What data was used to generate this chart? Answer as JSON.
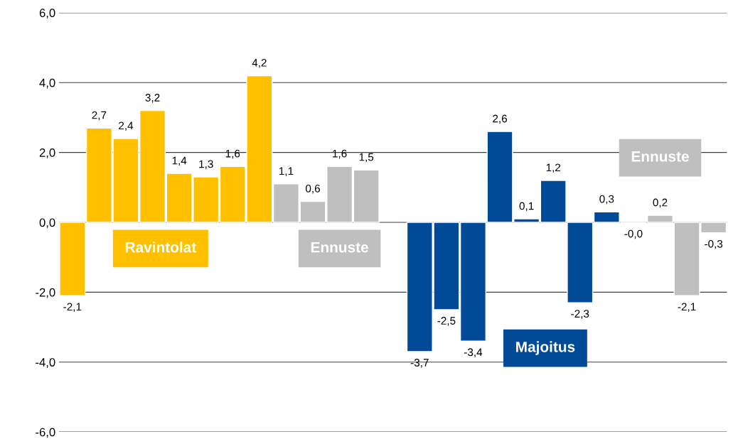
{
  "chart_data": {
    "type": "bar",
    "categories": [
      null,
      null,
      null,
      null,
      null,
      null,
      null,
      null,
      null,
      null,
      null,
      null,
      null,
      null,
      null,
      null,
      null,
      null,
      null,
      null,
      null,
      null,
      null,
      null,
      null
    ],
    "series": [
      {
        "color": "#ffc000",
        "values": [
          -2.1,
          2.7,
          2.4,
          3.2,
          1.4,
          1.3,
          1.6,
          4.2,
          null,
          null,
          null,
          null,
          null,
          null,
          null,
          null,
          null,
          null,
          null,
          null,
          null,
          null,
          null,
          null,
          null
        ],
        "value_labels": [
          "-2,1",
          "2,7",
          "2,4",
          "3,2",
          "1,4",
          "1,3",
          "1,6",
          "4,2",
          null,
          null,
          null,
          null,
          null,
          null,
          null,
          null,
          null,
          null,
          null,
          null,
          null,
          null,
          null,
          null,
          null
        ]
      },
      {
        "color": "#bfbfbf",
        "values": [
          null,
          null,
          null,
          null,
          null,
          null,
          null,
          null,
          1.1,
          0.6,
          1.6,
          1.5,
          null,
          null,
          null,
          null,
          null,
          null,
          null,
          null,
          null,
          null,
          null,
          null,
          null
        ],
        "value_labels": [
          null,
          null,
          null,
          null,
          null,
          null,
          null,
          null,
          "1,1",
          "0,6",
          "1,6",
          "1,5",
          null,
          null,
          null,
          null,
          null,
          null,
          null,
          null,
          null,
          null,
          null,
          null,
          null
        ]
      },
      {
        "color": "#004a97",
        "values": [
          null,
          null,
          null,
          null,
          null,
          null,
          null,
          null,
          null,
          null,
          null,
          null,
          null,
          -3.7,
          -2.5,
          -3.4,
          2.6,
          0.1,
          1.2,
          -2.3,
          0.3,
          null,
          null,
          null,
          null
        ],
        "value_labels": [
          null,
          null,
          null,
          null,
          null,
          null,
          null,
          null,
          null,
          null,
          null,
          null,
          null,
          "-3,7",
          "-2,5",
          "-3,4",
          "2,6",
          "0,1",
          "1,2",
          "-2,3",
          "0,3",
          null,
          null,
          null,
          null
        ]
      },
      {
        "color": "#bfbfbf",
        "values": [
          null,
          null,
          null,
          null,
          null,
          null,
          null,
          null,
          null,
          null,
          null,
          null,
          null,
          null,
          null,
          null,
          null,
          null,
          null,
          null,
          null,
          -0.01,
          0.2,
          -2.1,
          -0.3
        ],
        "value_labels": [
          null,
          null,
          null,
          null,
          null,
          null,
          null,
          null,
          null,
          null,
          null,
          null,
          null,
          null,
          null,
          null,
          null,
          null,
          null,
          null,
          null,
          "-0,0",
          "0,2",
          "-2,1",
          "-0,3"
        ]
      }
    ],
    "annotations": [
      "Ravintolat",
      "Ennuste",
      "Majoitus",
      "Ennuste"
    ],
    "ylim": [
      -6,
      6
    ],
    "yticks": [
      {
        "value": -6,
        "label": "-6,0"
      },
      {
        "value": -4,
        "label": "-4,0"
      },
      {
        "value": -2,
        "label": "-2,0"
      },
      {
        "value": 0,
        "label": "0,0"
      },
      {
        "value": 2,
        "label": "2,0"
      },
      {
        "value": 4,
        "label": "4,0"
      },
      {
        "value": 6,
        "label": "6,0"
      }
    ],
    "grid": "y",
    "tick_labels": "y"
  }
}
